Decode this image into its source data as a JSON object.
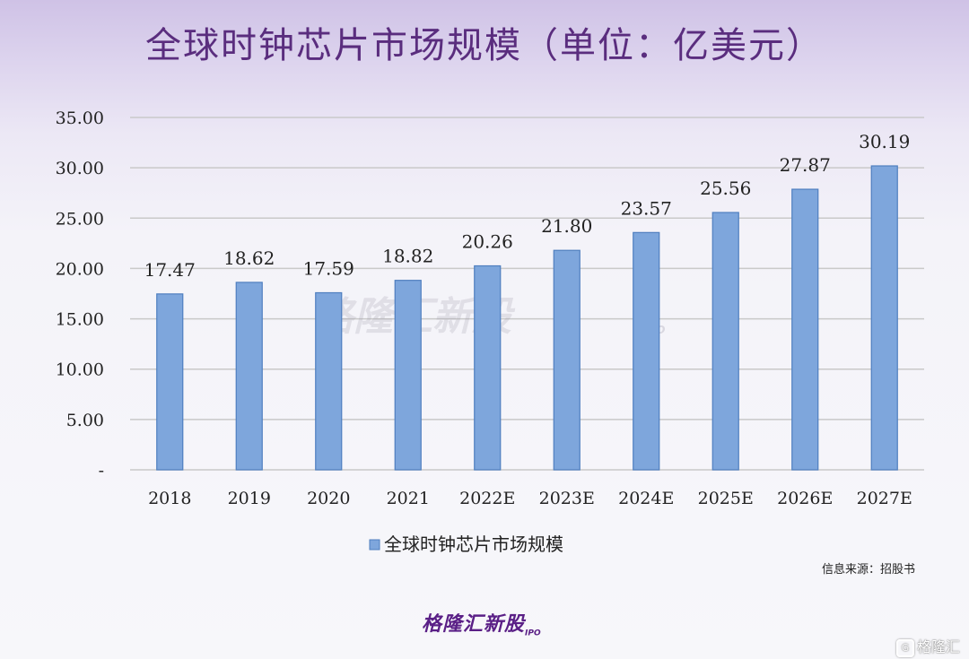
{
  "title": "全球时钟芯片市场规模（单位：亿美元）",
  "source": "信息来源：招股书",
  "watermark": {
    "text": "格隆汇新股",
    "sub": "IPO"
  },
  "logo": {
    "text": "格隆汇新股",
    "sub": "IPO"
  },
  "corner_logo": {
    "text": "格隆汇",
    "icon": "G"
  },
  "colors": {
    "bar": "#7ea6dc",
    "bar_edge": "#4f7fbf",
    "grid": "#c9c9c9",
    "title": "#5a2d7e"
  },
  "chart_data": {
    "type": "bar",
    "title": "全球时钟芯片市场规模（单位：亿美元）",
    "categories": [
      "2018",
      "2019",
      "2020",
      "2021",
      "2022E",
      "2023E",
      "2024E",
      "2025E",
      "2026E",
      "2027E"
    ],
    "series": [
      {
        "name": "全球时钟芯片市场规模",
        "values": [
          17.47,
          18.62,
          17.59,
          18.82,
          20.26,
          21.8,
          23.57,
          25.56,
          27.87,
          30.19
        ]
      }
    ],
    "data_labels": [
      "17.47",
      "18.62",
      "17.59",
      "18.82",
      "20.26",
      "21.80",
      "23.57",
      "25.56",
      "27.87",
      "30.19"
    ],
    "y_ticks": [
      {
        "value": 0,
        "label": "-"
      },
      {
        "value": 5,
        "label": "5.00"
      },
      {
        "value": 10,
        "label": "10.00"
      },
      {
        "value": 15,
        "label": "15.00"
      },
      {
        "value": 20,
        "label": "20.00"
      },
      {
        "value": 25,
        "label": "25.00"
      },
      {
        "value": 30,
        "label": "30.00"
      },
      {
        "value": 35,
        "label": "35.00"
      }
    ],
    "ylim": [
      0,
      35
    ],
    "grid": true,
    "legend": {
      "position": "bottom",
      "entries": [
        "全球时钟芯片市场规模"
      ]
    }
  }
}
